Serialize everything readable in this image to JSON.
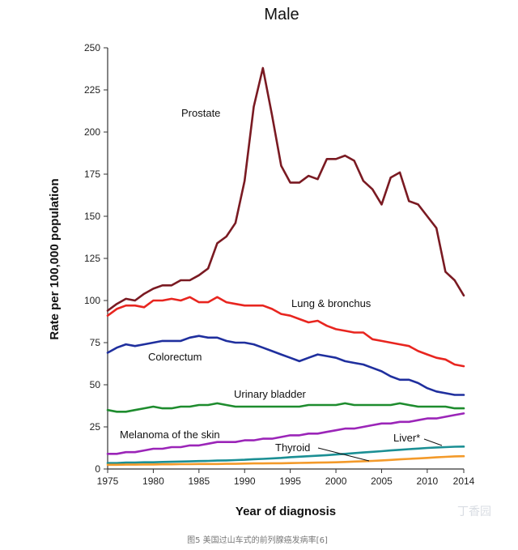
{
  "chart_data": {
    "type": "line",
    "title": "Male",
    "xlabel": "Year of diagnosis",
    "ylabel": "Rate per 100,000 population",
    "xlim": [
      1975,
      2014
    ],
    "ylim": [
      0,
      250
    ],
    "x_ticks": [
      1975,
      1980,
      1985,
      1990,
      1995,
      2000,
      2005,
      2010,
      2014
    ],
    "y_ticks": [
      0,
      25,
      50,
      75,
      100,
      125,
      150,
      175,
      200,
      225,
      250
    ],
    "grid": false,
    "legend": "inline labels",
    "x": [
      1975,
      1976,
      1977,
      1978,
      1979,
      1980,
      1981,
      1982,
      1983,
      1984,
      1985,
      1986,
      1987,
      1988,
      1989,
      1990,
      1991,
      1992,
      1993,
      1994,
      1995,
      1996,
      1997,
      1998,
      1999,
      2000,
      2001,
      2002,
      2003,
      2004,
      2005,
      2006,
      2007,
      2008,
      2009,
      2010,
      2011,
      2012,
      2013,
      2014
    ],
    "series": [
      {
        "name": "Prostate",
        "color": "#7a1a22",
        "values": [
          94,
          98,
          101,
          100,
          104,
          107,
          109,
          109,
          112,
          112,
          115,
          119,
          134,
          138,
          146,
          171,
          215,
          238,
          210,
          180,
          170,
          170,
          174,
          172,
          184,
          184,
          186,
          183,
          171,
          166,
          157,
          173,
          176,
          159,
          157,
          150,
          143,
          117,
          112,
          103
        ]
      },
      {
        "name": "Lung & bronchus",
        "color": "#e8251f",
        "values": [
          91,
          95,
          97,
          97,
          96,
          100,
          100,
          101,
          100,
          102,
          99,
          99,
          102,
          99,
          98,
          97,
          97,
          97,
          95,
          92,
          91,
          89,
          87,
          88,
          85,
          83,
          82,
          81,
          81,
          77,
          76,
          75,
          74,
          73,
          70,
          68,
          66,
          65,
          62,
          61
        ]
      },
      {
        "name": "Colorectum",
        "color": "#1f2f9e",
        "values": [
          69,
          72,
          74,
          73,
          74,
          75,
          76,
          76,
          76,
          78,
          79,
          78,
          78,
          76,
          75,
          75,
          74,
          72,
          70,
          68,
          66,
          64,
          66,
          68,
          67,
          66,
          64,
          63,
          62,
          60,
          58,
          55,
          53,
          53,
          51,
          48,
          46,
          45,
          44,
          44
        ]
      },
      {
        "name": "Urinary bladder",
        "color": "#1e8c2e",
        "values": [
          35,
          34,
          34,
          35,
          36,
          37,
          36,
          36,
          37,
          37,
          38,
          38,
          39,
          38,
          37,
          37,
          37,
          37,
          37,
          37,
          37,
          37,
          38,
          38,
          38,
          38,
          39,
          38,
          38,
          38,
          38,
          38,
          39,
          38,
          37,
          37,
          37,
          37,
          36,
          36
        ]
      },
      {
        "name": "Melanoma of the skin",
        "color": "#9b25b8",
        "values": [
          9,
          9,
          10,
          10,
          11,
          12,
          12,
          13,
          13,
          14,
          14,
          15,
          16,
          16,
          16,
          17,
          17,
          18,
          18,
          19,
          20,
          20,
          21,
          21,
          22,
          23,
          24,
          24,
          25,
          26,
          27,
          27,
          28,
          28,
          29,
          30,
          30,
          31,
          32,
          33
        ]
      },
      {
        "name": "Liver*",
        "color": "#1b8f94",
        "values": [
          3.5,
          3.5,
          3.8,
          3.8,
          4,
          4,
          4.2,
          4.3,
          4.4,
          4.5,
          4.7,
          4.8,
          5,
          5.1,
          5.3,
          5.5,
          5.8,
          6,
          6.3,
          6.6,
          7,
          7.3,
          7.6,
          7.9,
          8.2,
          8.6,
          9,
          9.4,
          9.8,
          10.2,
          10.6,
          11,
          11.4,
          11.8,
          12.1,
          12.5,
          12.8,
          13,
          13.2,
          13.3
        ]
      },
      {
        "name": "Thyroid",
        "color": "#f39a2a",
        "values": [
          2.5,
          2.5,
          2.6,
          2.6,
          2.7,
          2.7,
          2.8,
          2.8,
          2.9,
          2.9,
          3,
          3,
          3,
          3.1,
          3.1,
          3.2,
          3.3,
          3.3,
          3.4,
          3.4,
          3.5,
          3.6,
          3.7,
          3.8,
          3.9,
          4,
          4.2,
          4.4,
          4.6,
          4.8,
          5.1,
          5.4,
          5.7,
          6,
          6.3,
          6.6,
          6.9,
          7.2,
          7.5,
          7.6
        ]
      }
    ]
  },
  "caption": "图5 美国过山车式的前列腺癌发病率[6]",
  "watermark": "丁香园"
}
